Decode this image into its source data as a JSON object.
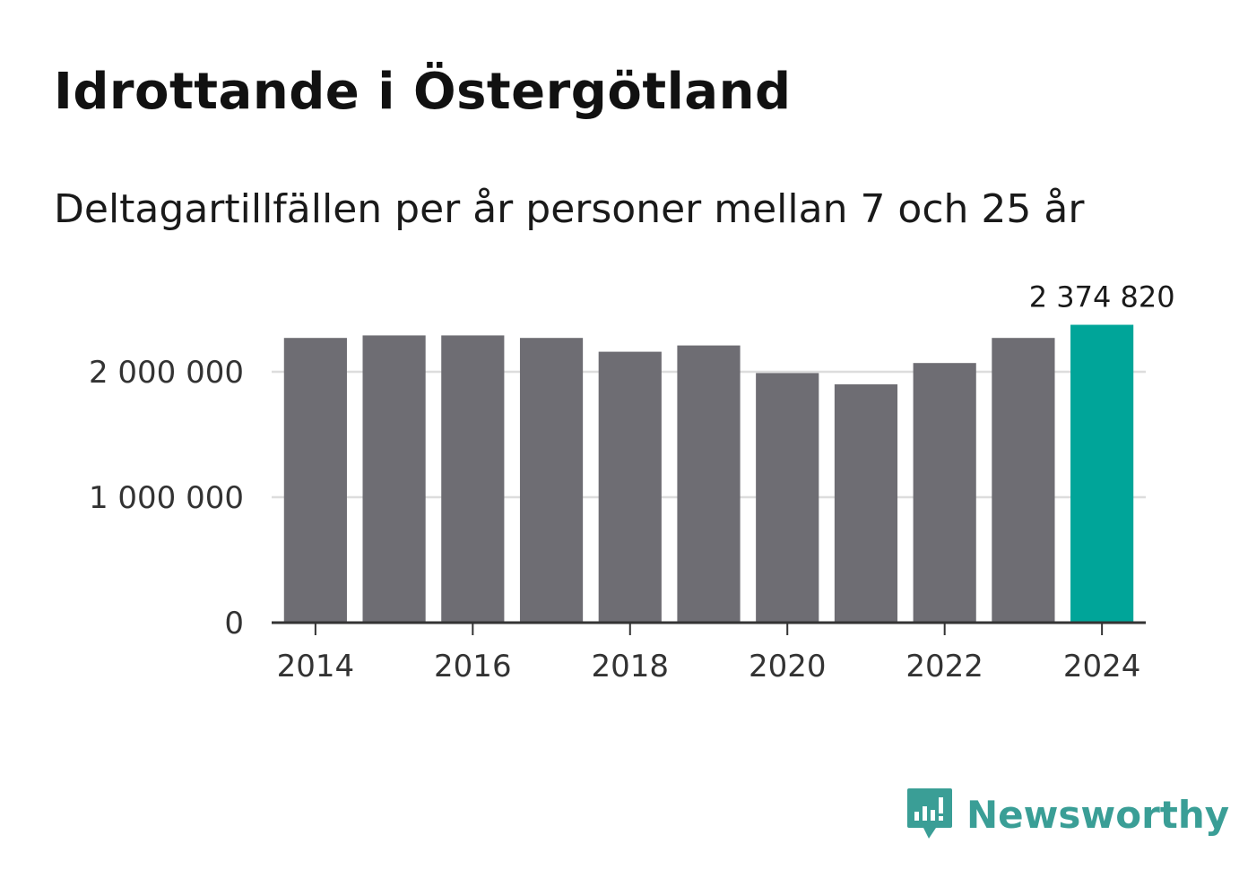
{
  "chart_data": {
    "type": "bar",
    "title": "Idrottande i Östergötland",
    "subtitle": "Deltagartillfällen per år personer mellan 7 och 25 år",
    "x": [
      2014,
      2015,
      2016,
      2017,
      2018,
      2019,
      2020,
      2021,
      2022,
      2023,
      2024
    ],
    "values": [
      2270000,
      2290000,
      2290000,
      2270000,
      2160000,
      2210000,
      1990000,
      1900000,
      2070000,
      2270000,
      2374820
    ],
    "ylim": [
      0,
      2500000
    ],
    "yticks": [
      {
        "value": 0,
        "label": "0"
      },
      {
        "value": 1000000,
        "label": "1 000 000"
      },
      {
        "value": 2000000,
        "label": "2 000 000"
      }
    ],
    "xticks": [
      {
        "value": 2014,
        "label": "2014"
      },
      {
        "value": 2016,
        "label": "2016"
      },
      {
        "value": 2018,
        "label": "2018"
      },
      {
        "value": 2020,
        "label": "2020"
      },
      {
        "value": 2022,
        "label": "2022"
      },
      {
        "value": 2024,
        "label": "2024"
      }
    ],
    "highlight": {
      "x": 2024,
      "label": "2 374 820"
    },
    "colors": {
      "bar": "#6e6d73",
      "highlight": "#00a599",
      "grid": "#dddddd",
      "axis": "#333333"
    },
    "grid": true
  },
  "branding": {
    "name": "Newsworthy",
    "color": "#3a9e96"
  }
}
